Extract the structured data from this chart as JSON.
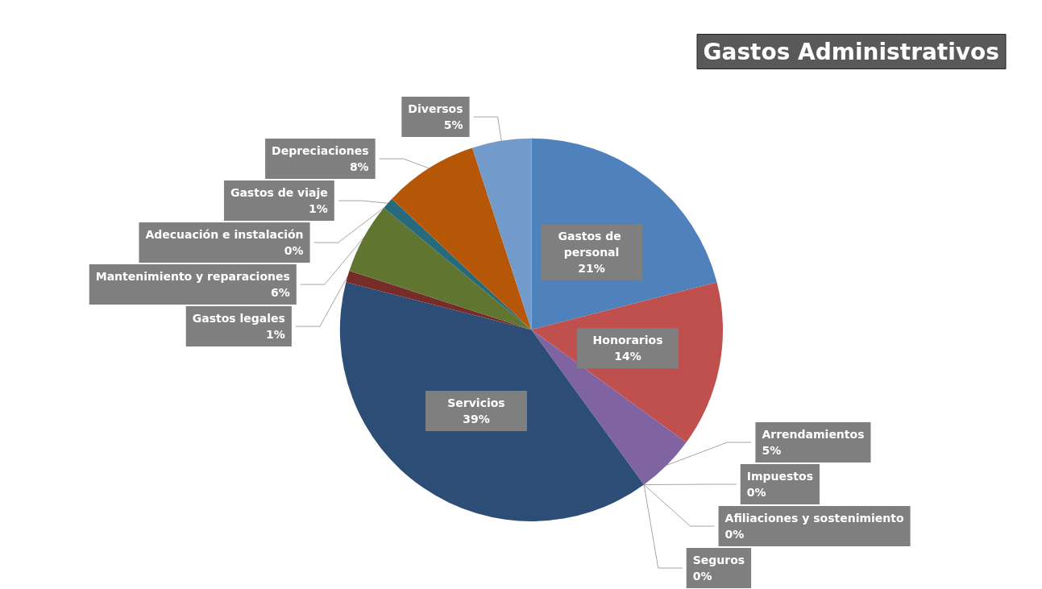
{
  "chart_data": {
    "type": "pie",
    "title": "Gastos Administrativos",
    "legend": false,
    "categories": [
      "Gastos de personal",
      "Honorarios",
      "Arrendamientos",
      "Impuestos",
      "Afiliaciones y sostenimiento",
      "Seguros",
      "Servicios",
      "Gastos legales",
      "Mantenimiento y reparaciones",
      "Adecuación e instalación",
      "Gastos de viaje",
      "Depreciaciones",
      "Diversos"
    ],
    "values": [
      21,
      14,
      5,
      0,
      0,
      0,
      39,
      1,
      6,
      0,
      1,
      8,
      5
    ],
    "value_labels": [
      "21%",
      "14%",
      "5%",
      "0%",
      "0%",
      "0%",
      "39%",
      "1%",
      "6%",
      "0%",
      "1%",
      "8%",
      "5%"
    ],
    "colors": [
      "#4f81bd",
      "#c0504d",
      "#8064a2",
      "#4bacc6",
      "#f79646",
      "#9bbb59",
      "#2c4d75",
      "#772c2a",
      "#5f7530",
      "#4d3b62",
      "#276a7c",
      "#b65708",
      "#729aca"
    ]
  }
}
